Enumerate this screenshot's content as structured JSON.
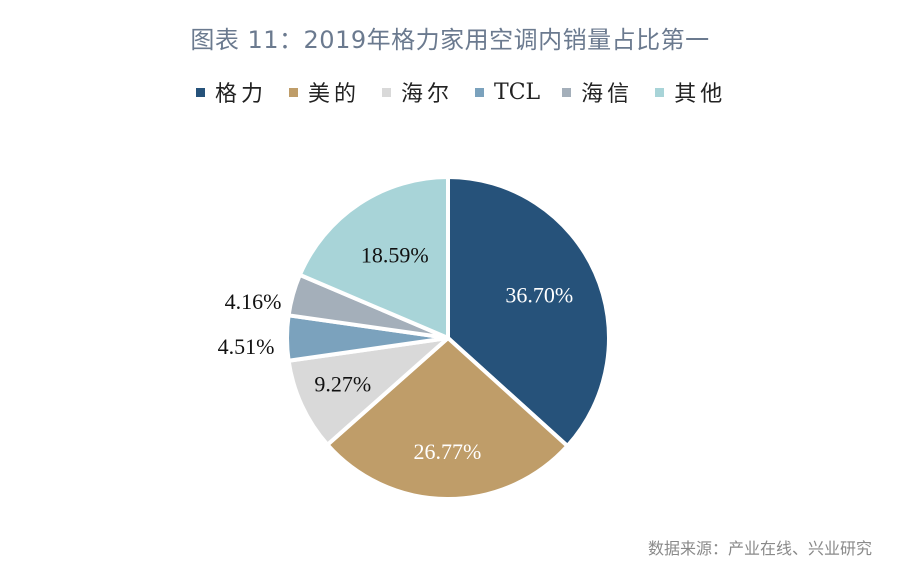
{
  "title": "图表 11：2019年格力家用空调内销量占比第一",
  "legend": [
    {
      "label": "格力",
      "color": "#26527a"
    },
    {
      "label": "美的",
      "color": "#bf9d69"
    },
    {
      "label": "海尔",
      "color": "#d9d9d9"
    },
    {
      "label": "TCL",
      "color": "#7ba2bd"
    },
    {
      "label": "海信",
      "color": "#a4afba"
    },
    {
      "label": "其他",
      "color": "#a8d4d8"
    }
  ],
  "source": "数据来源：产业在线、兴业研究",
  "chart_data": {
    "type": "pie",
    "title": "图表 11：2019年格力家用空调内销量占比第一",
    "categories": [
      "格力",
      "美的",
      "海尔",
      "TCL",
      "海信",
      "其他"
    ],
    "values": [
      36.7,
      26.77,
      9.27,
      4.51,
      4.16,
      18.59
    ],
    "labels": [
      "36.70%",
      "26.77%",
      "9.27%",
      "4.51%",
      "4.16%",
      "18.59%"
    ],
    "colors": [
      "#26527a",
      "#bf9d69",
      "#d9d9d9",
      "#7ba2bd",
      "#a4afba",
      "#a8d4d8"
    ],
    "start_angle": "12 o'clock",
    "direction": "clockwise",
    "legend_position": "top",
    "unit": "%"
  }
}
